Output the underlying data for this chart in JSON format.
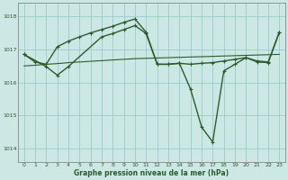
{
  "title": "Graphe pression niveau de la mer (hPa)",
  "bg_color": "#cce8e4",
  "grid_color": "#99cccc",
  "line_color": "#2d5a2d",
  "ylim": [
    1013.6,
    1018.4
  ],
  "yticks": [
    1014,
    1015,
    1016,
    1017,
    1018
  ],
  "xlim": [
    -0.5,
    23.5
  ],
  "xticks": [
    0,
    1,
    2,
    3,
    4,
    5,
    6,
    7,
    8,
    9,
    10,
    11,
    12,
    13,
    14,
    15,
    16,
    17,
    18,
    19,
    20,
    21,
    22,
    23
  ],
  "series_wave_x": [
    0,
    1,
    2,
    3,
    4,
    5,
    6,
    7,
    8,
    9,
    10,
    11,
    12,
    13,
    14,
    15,
    16,
    17,
    18,
    19,
    20,
    21,
    22,
    23
  ],
  "series_wave_y": [
    1016.85,
    1016.62,
    1016.55,
    1017.08,
    1017.25,
    1017.38,
    1017.5,
    1017.6,
    1017.7,
    1017.82,
    1017.92,
    1017.52,
    1016.55,
    1016.55,
    1016.58,
    1016.55,
    1016.58,
    1016.6,
    1016.65,
    1016.7,
    1016.75,
    1016.65,
    1016.62,
    1017.52
  ],
  "series_dip_x": [
    0,
    2,
    3,
    4,
    7,
    8,
    9,
    10,
    11,
    12,
    13,
    14,
    15,
    16,
    17,
    18,
    19,
    20,
    21,
    22,
    23
  ],
  "series_dip_y": [
    1016.85,
    1016.48,
    1016.22,
    1016.48,
    1017.38,
    1017.48,
    1017.6,
    1017.72,
    1017.48,
    1016.55,
    1016.55,
    1016.58,
    1015.8,
    1014.65,
    1014.2,
    1016.35,
    1016.55,
    1016.75,
    1016.62,
    1016.6,
    1017.52
  ],
  "series_flat_x": [
    0,
    1,
    2,
    3,
    4,
    5,
    6,
    7,
    8,
    9,
    10,
    11,
    12,
    13,
    14,
    15,
    16,
    17,
    18,
    19,
    20,
    21,
    22,
    23
  ],
  "series_flat_y": [
    1016.5,
    1016.52,
    1016.55,
    1016.57,
    1016.6,
    1016.62,
    1016.64,
    1016.66,
    1016.68,
    1016.7,
    1016.72,
    1016.73,
    1016.74,
    1016.75,
    1016.76,
    1016.77,
    1016.78,
    1016.79,
    1016.8,
    1016.81,
    1016.82,
    1016.83,
    1016.84,
    1016.85
  ]
}
